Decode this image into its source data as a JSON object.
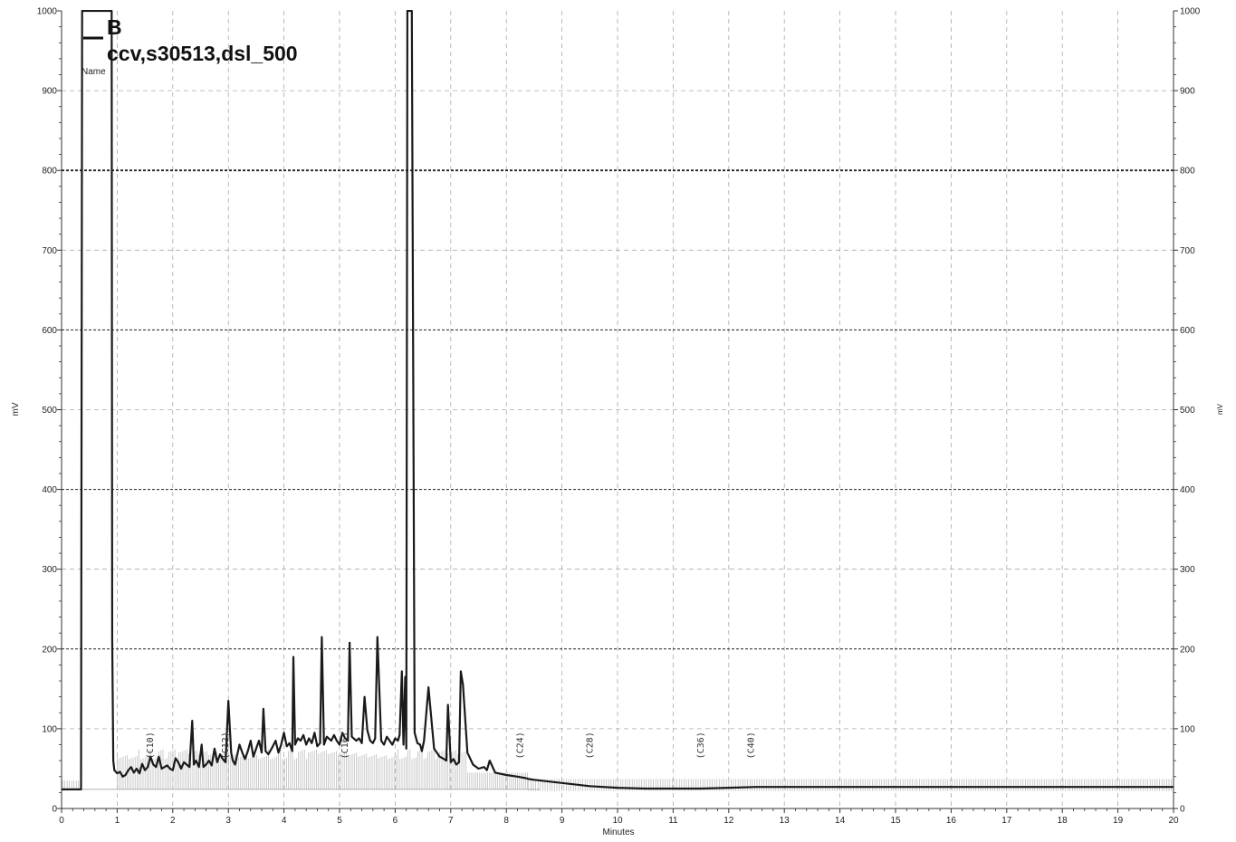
{
  "chart_data": {
    "type": "line",
    "xlabel": "Minutes",
    "ylabel": "mV",
    "y2label": "mV",
    "xlim": [
      0,
      20
    ],
    "ylim": [
      0,
      1000
    ],
    "x_ticks": [
      "0",
      "1",
      "2",
      "3",
      "4",
      "5",
      "6",
      "7",
      "8",
      "9",
      "10",
      "11",
      "12",
      "13",
      "14",
      "15",
      "16",
      "17",
      "18",
      "19",
      "20"
    ],
    "y_ticks": [
      "0",
      "100",
      "200",
      "300",
      "400",
      "500",
      "600",
      "700",
      "800",
      "900",
      "1000"
    ],
    "grid": true,
    "legend": {
      "letter": "B",
      "name": "ccv,s30513,dsl_500",
      "sub": "Name"
    },
    "peak_labels": [
      {
        "x": 1.6,
        "text": "(C10)"
      },
      {
        "x": 2.95,
        "text": "(C12)"
      },
      {
        "x": 5.1,
        "text": "(C16)"
      },
      {
        "x": 8.25,
        "text": "(C24)"
      },
      {
        "x": 9.5,
        "text": "(C28)"
      },
      {
        "x": 11.5,
        "text": "(C36)"
      },
      {
        "x": 12.4,
        "text": "(C40)"
      }
    ],
    "series": [
      {
        "color": "#1a1a1a",
        "x": [
          0.0,
          0.35,
          0.37,
          0.38,
          0.4,
          0.88,
          0.9,
          0.91,
          0.93,
          0.95,
          1.0,
          1.05,
          1.1,
          1.15,
          1.2,
          1.25,
          1.3,
          1.35,
          1.4,
          1.45,
          1.5,
          1.55,
          1.6,
          1.65,
          1.7,
          1.75,
          1.8,
          1.85,
          1.9,
          1.95,
          2.0,
          2.05,
          2.1,
          2.15,
          2.2,
          2.25,
          2.3,
          2.35,
          2.38,
          2.42,
          2.47,
          2.52,
          2.55,
          2.6,
          2.65,
          2.7,
          2.75,
          2.8,
          2.85,
          2.9,
          2.95,
          3.0,
          3.05,
          3.08,
          3.12,
          3.2,
          3.25,
          3.3,
          3.35,
          3.4,
          3.45,
          3.5,
          3.55,
          3.6,
          3.63,
          3.67,
          3.72,
          3.8,
          3.85,
          3.9,
          3.95,
          4.0,
          4.05,
          4.1,
          4.15,
          4.17,
          4.2,
          4.25,
          4.3,
          4.35,
          4.4,
          4.45,
          4.5,
          4.55,
          4.6,
          4.65,
          4.68,
          4.72,
          4.77,
          4.85,
          4.9,
          4.95,
          5.0,
          5.05,
          5.1,
          5.15,
          5.18,
          5.22,
          5.3,
          5.35,
          5.4,
          5.45,
          5.5,
          5.55,
          5.6,
          5.64,
          5.68,
          5.75,
          5.8,
          5.85,
          5.9,
          5.95,
          6.0,
          6.05,
          6.08,
          6.12,
          6.15,
          6.18,
          6.2,
          6.22,
          6.24,
          6.26,
          6.3,
          6.35,
          6.4,
          6.45,
          6.48,
          6.52,
          6.6,
          6.7,
          6.8,
          6.88,
          6.92,
          6.95,
          7.0,
          7.05,
          7.1,
          7.15,
          7.18,
          7.22,
          7.3,
          7.4,
          7.5,
          7.6,
          7.65,
          7.7,
          7.8,
          8.0,
          8.2,
          8.35,
          8.4,
          8.5,
          9.0,
          9.5,
          10.0,
          10.5,
          11.0,
          11.5,
          12.0,
          12.5,
          13.0,
          14.0,
          15.0,
          16.0,
          17.0,
          18.0,
          19.0,
          20.0
        ],
        "y": [
          24,
          24,
          1000,
          1000,
          1000,
          1000,
          1000,
          215,
          60,
          48,
          44,
          46,
          40,
          42,
          48,
          52,
          45,
          50,
          44,
          56,
          48,
          52,
          65,
          55,
          52,
          65,
          50,
          52,
          54,
          50,
          48,
          63,
          58,
          50,
          58,
          55,
          52,
          110,
          55,
          60,
          52,
          80,
          52,
          55,
          60,
          54,
          75,
          58,
          68,
          62,
          58,
          135,
          70,
          60,
          55,
          80,
          70,
          62,
          72,
          85,
          65,
          75,
          85,
          70,
          125,
          72,
          68,
          78,
          85,
          70,
          80,
          95,
          78,
          82,
          72,
          190,
          80,
          88,
          85,
          92,
          80,
          88,
          82,
          95,
          78,
          82,
          215,
          80,
          90,
          85,
          92,
          85,
          80,
          95,
          88,
          85,
          208,
          90,
          85,
          88,
          82,
          140,
          98,
          85,
          82,
          88,
          215,
          85,
          80,
          90,
          85,
          80,
          88,
          85,
          92,
          172,
          80,
          165,
          75,
          1000,
          1000,
          1000,
          1000,
          95,
          82,
          80,
          72,
          85,
          152,
          75,
          65,
          62,
          60,
          130,
          58,
          62,
          55,
          58,
          172,
          155,
          70,
          55,
          50,
          52,
          48,
          60,
          45,
          42,
          40,
          38,
          37,
          36,
          32,
          28,
          26,
          25,
          25,
          25,
          26,
          27,
          27,
          27,
          27,
          27,
          27,
          27,
          27,
          27
        ]
      }
    ]
  }
}
